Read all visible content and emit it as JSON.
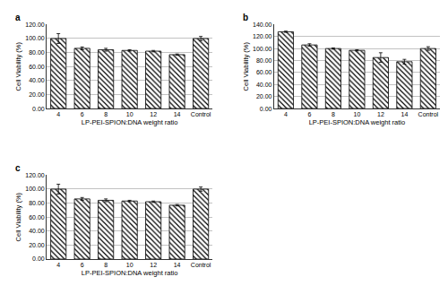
{
  "chart_data": [
    {
      "type": "bar",
      "title": "a",
      "x_label": "LP-PEI-SPION:DNA weight ratio",
      "y_label": "Cell Viability (%)",
      "categories": [
        "4",
        "6",
        "8",
        "10",
        "12",
        "14",
        "Control"
      ],
      "values": [
        100,
        86,
        84,
        83,
        82,
        77,
        100
      ],
      "errors": [
        7,
        2,
        2,
        1,
        1,
        1,
        3
      ],
      "color": "#000000",
      "ylim": [
        0,
        120
      ],
      "yticks": [
        {
          "value": 0,
          "label": "0.00"
        },
        {
          "value": 20,
          "label": "20.00"
        },
        {
          "value": 40,
          "label": "40.00"
        },
        {
          "value": 60,
          "label": "60.00"
        },
        {
          "value": 80,
          "label": "80.00"
        },
        {
          "value": 100,
          "label": "100.00"
        },
        {
          "value": 120,
          "label": "120.00"
        }
      ],
      "grid": true
    },
    {
      "type": "bar",
      "title": "b",
      "x_label": "LP-PEI-SPION:DNA weight ratio",
      "y_label": "Cell Viability (%)",
      "categories": [
        "4",
        "6",
        "8",
        "10",
        "12",
        "14",
        "Control"
      ],
      "values": [
        128,
        106,
        100,
        97,
        85,
        78,
        100
      ],
      "errors": [
        1,
        2,
        1,
        1,
        8,
        4,
        3
      ],
      "color": "#000000",
      "ylim": [
        0,
        140
      ],
      "yticks": [
        {
          "value": 0,
          "label": "0.00"
        },
        {
          "value": 20,
          "label": "20.00"
        },
        {
          "value": 40,
          "label": "40.00"
        },
        {
          "value": 60,
          "label": "60.00"
        },
        {
          "value": 80,
          "label": "80.00"
        },
        {
          "value": 100,
          "label": "100.00"
        },
        {
          "value": 120,
          "label": "120.00"
        },
        {
          "value": 140,
          "label": "140.00"
        }
      ],
      "grid": true
    },
    {
      "type": "bar",
      "title": "c",
      "x_label": "LP-PEI-SPION:DNA weight ratio",
      "y_label": "Cell Viability (%)",
      "categories": [
        "4",
        "6",
        "8",
        "10",
        "12",
        "14",
        "Control"
      ],
      "values": [
        100,
        86,
        84,
        83,
        82,
        77,
        100
      ],
      "errors": [
        7,
        2,
        2,
        1,
        1,
        1,
        3
      ],
      "color": "#000000",
      "ylim": [
        0,
        120
      ],
      "yticks": [
        {
          "value": 0,
          "label": "0.00"
        },
        {
          "value": 20,
          "label": "20.00"
        },
        {
          "value": 40,
          "label": "40.00"
        },
        {
          "value": 60,
          "label": "60.00"
        },
        {
          "value": 80,
          "label": "80.00"
        },
        {
          "value": 100,
          "label": "100.00"
        },
        {
          "value": 120,
          "label": "120.00"
        }
      ],
      "grid": true
    }
  ]
}
